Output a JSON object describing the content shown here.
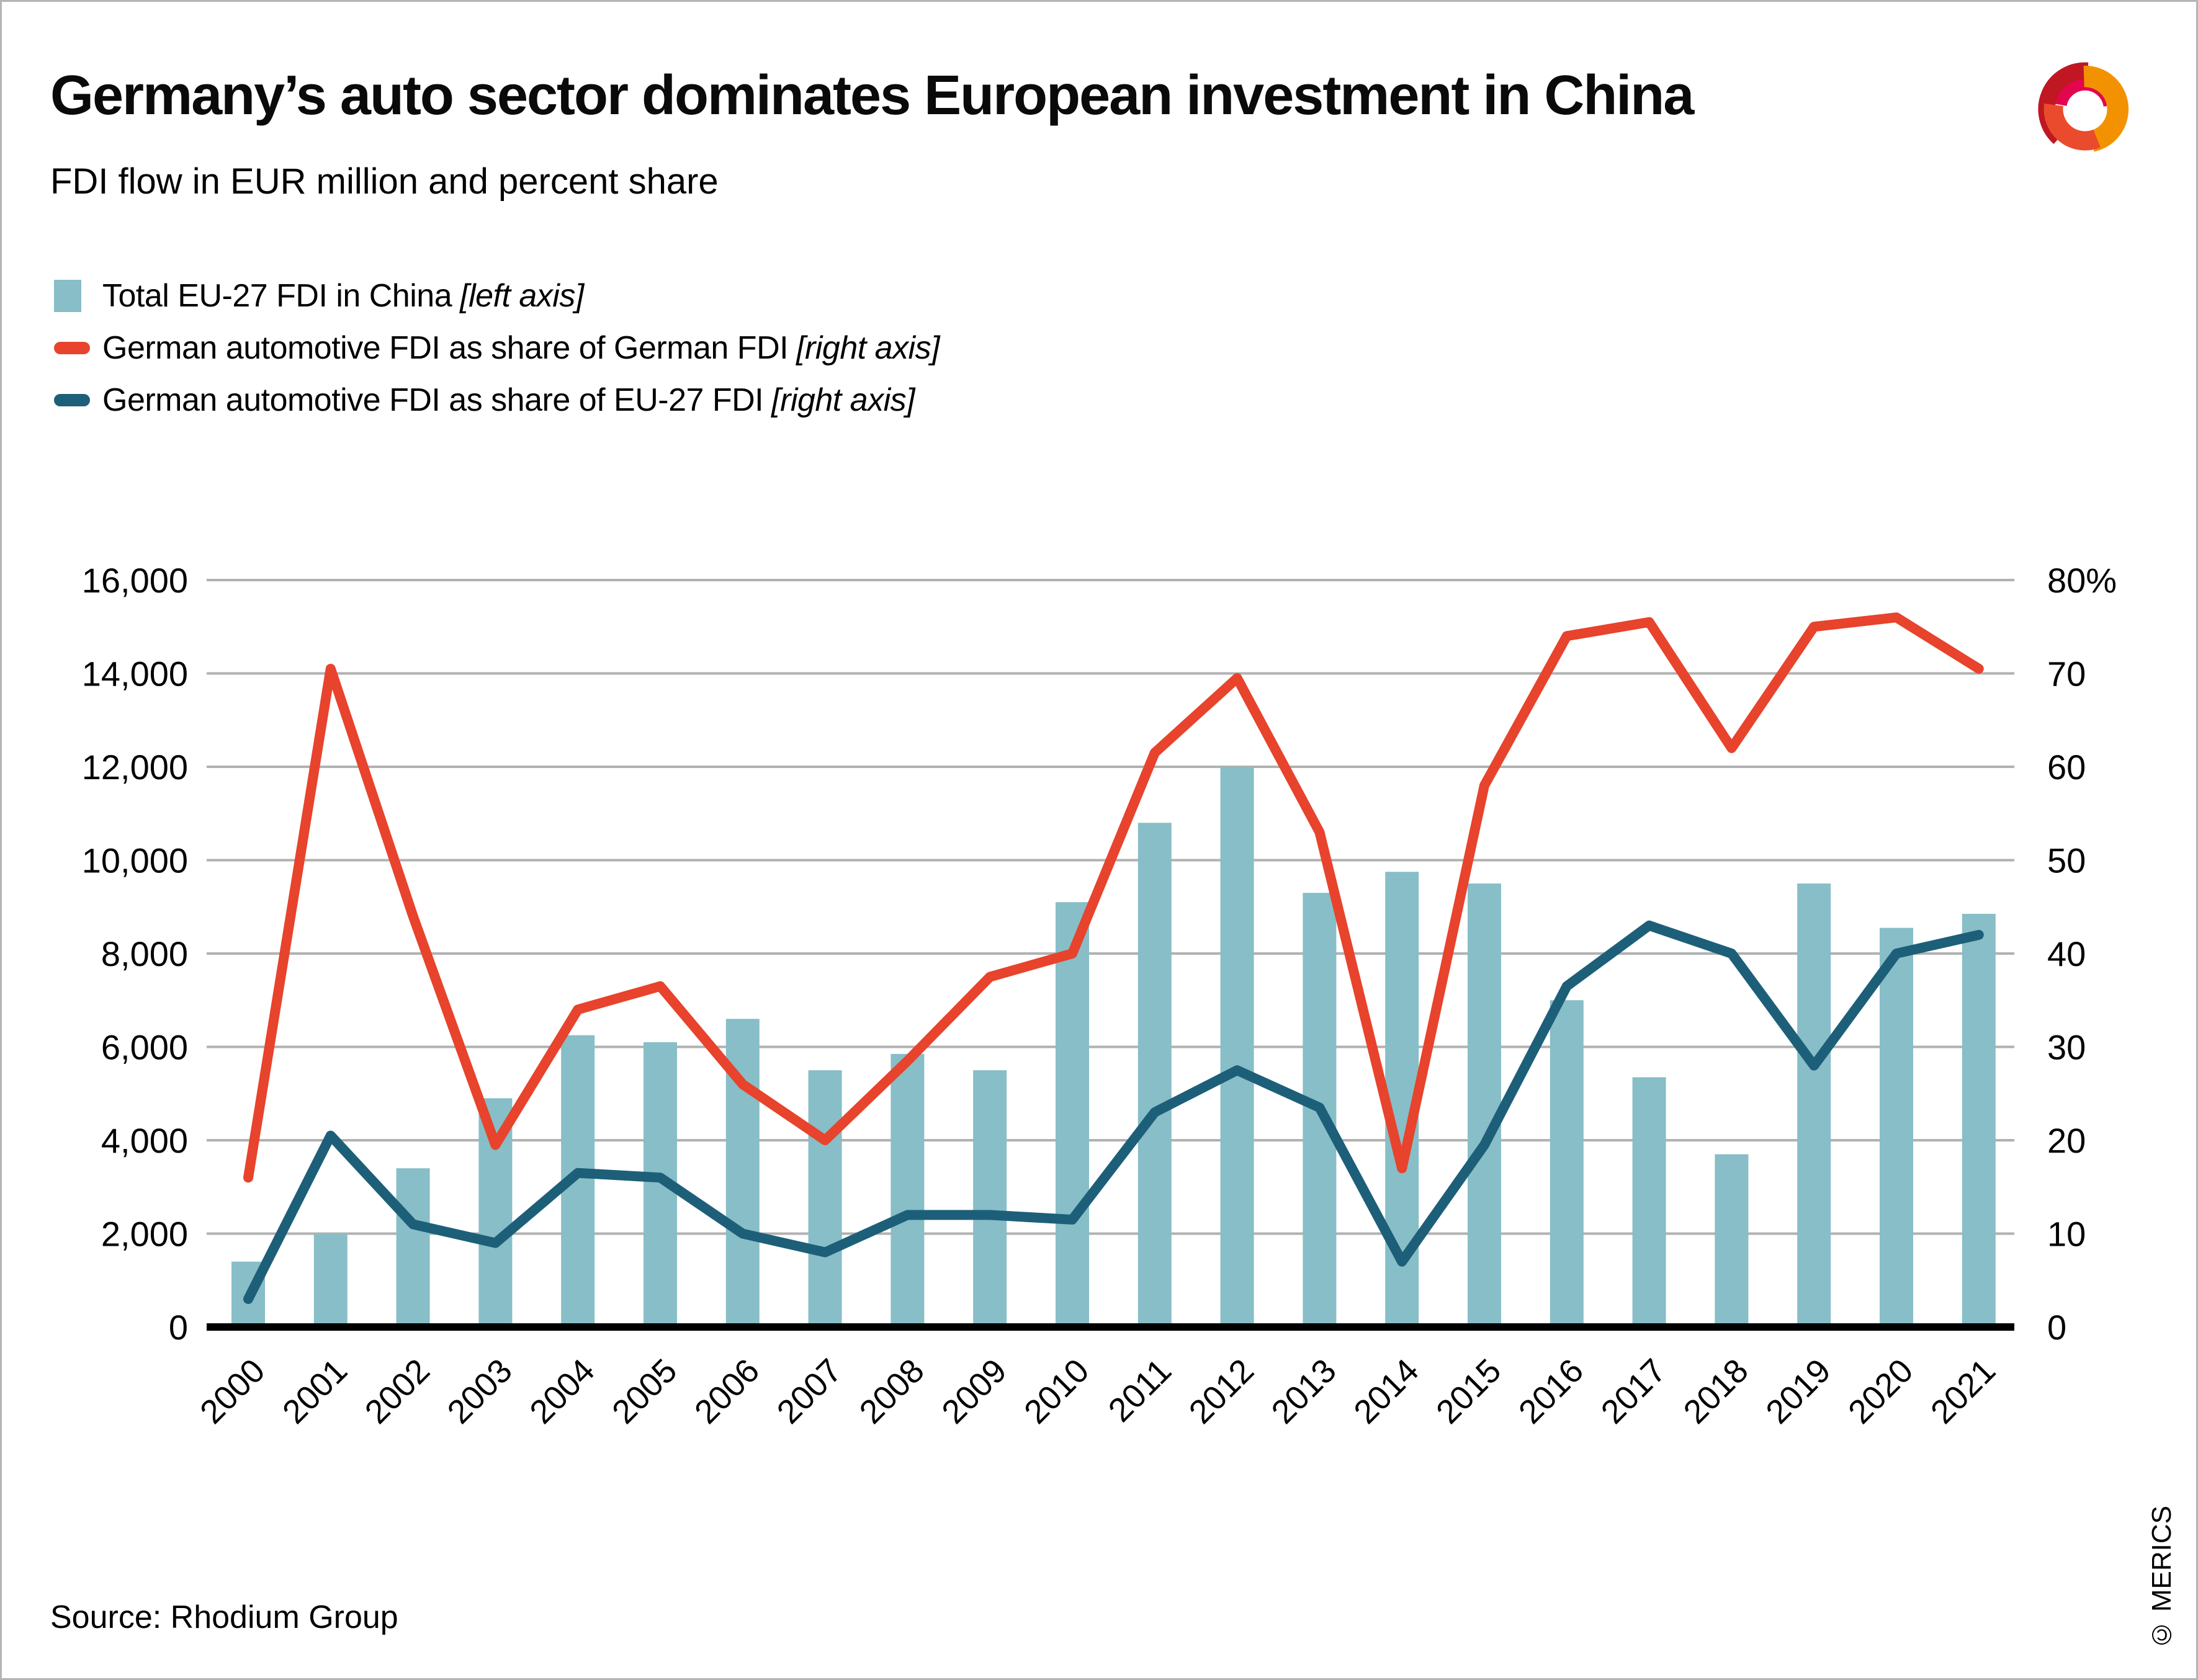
{
  "header": {
    "title": "Germany’s auto sector dominates European investment in China",
    "subtitle": "FDI flow in EUR million and percent share"
  },
  "legend": {
    "items": [
      {
        "label": "Total EU-27 FDI in China",
        "axis_note": "[left axis]",
        "marker": "bar"
      },
      {
        "label": "German automotive FDI as share of German FDI",
        "axis_note": "[right axis]",
        "marker": "line"
      },
      {
        "label": "German automotive FDI as share of EU-27 FDI",
        "axis_note": "[right axis]",
        "marker": "line"
      }
    ]
  },
  "footer": {
    "source": "Source: Rhodium Group",
    "copyright": "© MERICS"
  },
  "logo": {
    "name": "merics-logo",
    "colors": {
      "dark_red": "#c01722",
      "magenta": "#e3064e",
      "orange": "#f39200",
      "vermilion": "#ea4b2d"
    }
  },
  "chart_data": {
    "type": "combo-bar-line",
    "title": "Germany’s auto sector dominates European investment in China",
    "subtitle": "FDI flow in EUR million and percent share",
    "categories": [
      "2000",
      "2001",
      "2002",
      "2003",
      "2004",
      "2005",
      "2006",
      "2007",
      "2008",
      "2009",
      "2010",
      "2011",
      "2012",
      "2013",
      "2014",
      "2015",
      "2016",
      "2017",
      "2018",
      "2019",
      "2020",
      "2021"
    ],
    "series": [
      {
        "name": "Total EU-27 FDI in China",
        "type": "bar",
        "axis": "left",
        "unit": "EUR million",
        "color": "#87bec7",
        "values": [
          1400,
          2000,
          3400,
          4900,
          6250,
          6100,
          6600,
          5500,
          5850,
          5500,
          9100,
          10800,
          12000,
          9300,
          9750,
          9500,
          7000,
          5350,
          3700,
          9500,
          8550,
          8850
        ]
      },
      {
        "name": "German automotive FDI as share of German FDI",
        "type": "line",
        "axis": "right",
        "unit": "%",
        "color": "#e8432c",
        "values": [
          16,
          70.5,
          44,
          19.5,
          34,
          36.5,
          26,
          20,
          28.5,
          37.5,
          40,
          61.5,
          69.5,
          53,
          17,
          58,
          74,
          75.5,
          62,
          75,
          76,
          70.5
        ]
      },
      {
        "name": "German automotive FDI as share of EU-27 FDI",
        "type": "line",
        "axis": "right",
        "unit": "%",
        "color": "#1d5f79",
        "values": [
          3,
          20.5,
          11,
          9,
          16.5,
          16,
          10,
          8,
          12,
          12,
          11.5,
          23,
          27.5,
          23.5,
          7,
          19.5,
          36.5,
          43,
          40,
          28,
          40,
          42
        ]
      }
    ],
    "left_axis": {
      "min": 0,
      "max": 16000,
      "ticks": [
        "0",
        "2,000",
        "4,000",
        "6,000",
        "8,000",
        "10,000",
        "12,000",
        "14,000",
        "16,000"
      ]
    },
    "right_axis": {
      "min": 0,
      "max": 80,
      "ticks": [
        "0",
        "10",
        "20",
        "30",
        "40",
        "50",
        "60",
        "70",
        "80%"
      ]
    },
    "grid": true,
    "gridline_color": "#b1b1b1",
    "axis_line_color": "#000000",
    "legend_position": "top-left"
  }
}
